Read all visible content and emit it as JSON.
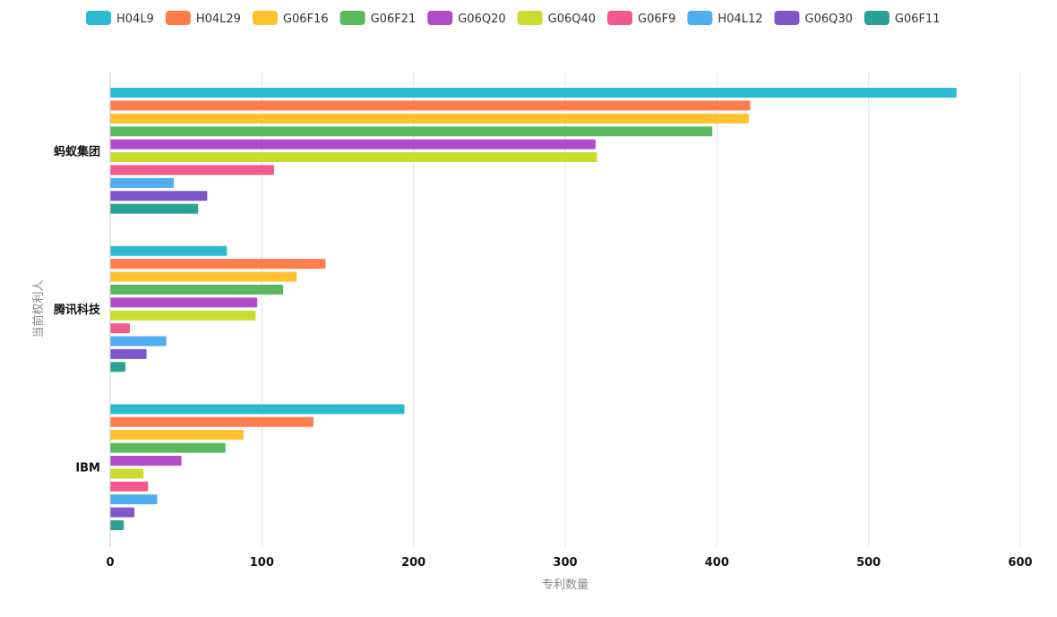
{
  "chart_data": {
    "type": "bar",
    "orientation": "horizontal",
    "categories": [
      "蚂蚁集团",
      "腾讯科技",
      "IBM"
    ],
    "xlabel": "专利数量",
    "ylabel": "当前权利人",
    "xlim": [
      0,
      600
    ],
    "x_ticks": [
      0,
      100,
      200,
      300,
      400,
      500,
      600
    ],
    "grid": true,
    "legend_position": "top",
    "series": [
      {
        "name": "H04L9",
        "color": "#2bbad0",
        "values": [
          558,
          77,
          194
        ]
      },
      {
        "name": "H04L29",
        "color": "#ff7c4d",
        "values": [
          422,
          142,
          134
        ]
      },
      {
        "name": "G06F16",
        "color": "#ffc12e",
        "values": [
          421,
          123,
          88
        ]
      },
      {
        "name": "G06F21",
        "color": "#5cb85c",
        "values": [
          397,
          114,
          76
        ]
      },
      {
        "name": "G06Q20",
        "color": "#b14cc9",
        "values": [
          320,
          97,
          47
        ]
      },
      {
        "name": "G06Q40",
        "color": "#c9dc2e",
        "values": [
          321,
          96,
          22
        ]
      },
      {
        "name": "G06F9",
        "color": "#f25a8c",
        "values": [
          108,
          13,
          25
        ]
      },
      {
        "name": "H04L12",
        "color": "#50adf0",
        "values": [
          42,
          37,
          31
        ]
      },
      {
        "name": "G06Q30",
        "color": "#7f57cc",
        "values": [
          64,
          24,
          16
        ]
      },
      {
        "name": "G06F11",
        "color": "#2aa194",
        "values": [
          58,
          10,
          9
        ]
      }
    ]
  }
}
